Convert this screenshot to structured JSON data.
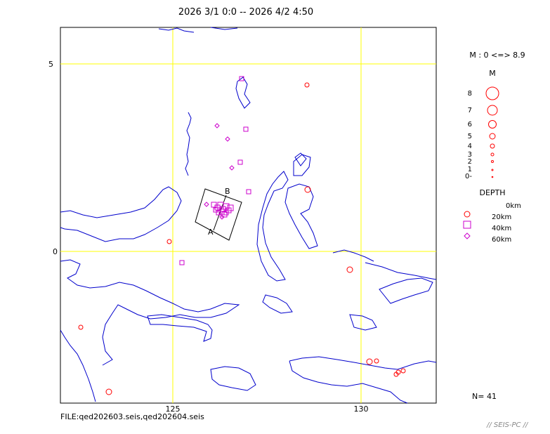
{
  "title": "2026 3/1 0:0 -- 2026 4/2 4:50",
  "map": {
    "axis_labels": {
      "lat_5": "5",
      "lat_0": "0",
      "lon_125": "125",
      "lon_130": "130"
    },
    "cross_section": {
      "label_a": "A",
      "label_b": "B"
    },
    "colors": {
      "coast": "#0000cc",
      "grid": "#ffff00",
      "quake_circle": "#ff0000",
      "quake_square_diamond": "#cc00cc"
    }
  },
  "legend": {
    "magnitude_range": "M : 0 <=> 8.9",
    "magnitude_title": "M",
    "magnitudes": [
      "8",
      "7",
      "6",
      "5",
      "4",
      "3",
      "2",
      "1",
      "0-"
    ],
    "depth_title": "DEPTH",
    "depths": [
      "0km",
      "20km",
      "40km",
      "60km"
    ]
  },
  "file_info": "FILE:qed202603.seis,qed202604.seis",
  "count": "N= 41",
  "footer": "// SEIS-PC //"
}
